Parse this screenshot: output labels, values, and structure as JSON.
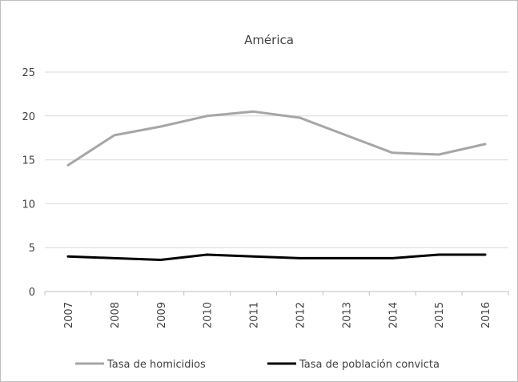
{
  "chart_data": {
    "type": "line",
    "title": "América",
    "xlabel": "",
    "ylabel": "",
    "categories": [
      "2007",
      "2008",
      "2009",
      "2010",
      "2011",
      "2012",
      "2013",
      "2014",
      "2015",
      "2016"
    ],
    "ylim": [
      0,
      25
    ],
    "yticks": [
      "0",
      "5",
      "10",
      "15",
      "20",
      "25"
    ],
    "grid": true,
    "legend_position": "bottom",
    "series": [
      {
        "name": "Tasa de homicidios",
        "color": "#a6a6a6",
        "values": [
          14.4,
          17.8,
          18.8,
          20.0,
          20.5,
          19.8,
          17.8,
          15.8,
          15.6,
          16.8
        ]
      },
      {
        "name": "Tasa de población convicta",
        "color": "#000000",
        "values": [
          4.0,
          3.8,
          3.6,
          4.2,
          4.0,
          3.8,
          3.8,
          3.8,
          4.2,
          4.2
        ]
      }
    ]
  }
}
